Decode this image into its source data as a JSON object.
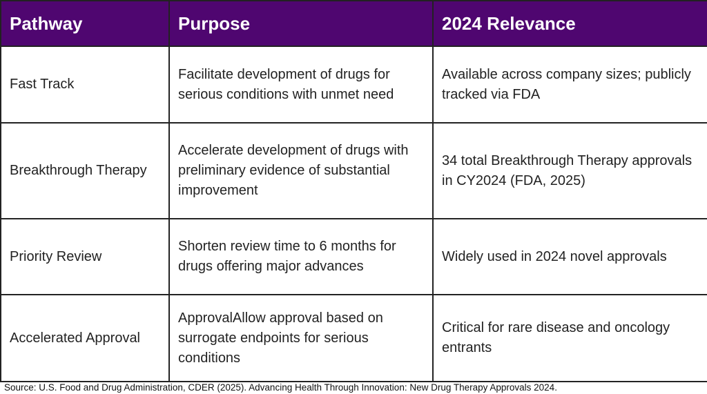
{
  "table": {
    "headers": [
      "Pathway",
      "Purpose",
      "2024 Relevance"
    ],
    "rows": [
      {
        "pathway": "Fast Track",
        "purpose": "Facilitate development of drugs for serious conditions with unmet need",
        "relevance": "Available across company sizes; publicly tracked via FDA"
      },
      {
        "pathway": "Breakthrough Therapy",
        "purpose": "Accelerate development of drugs with preliminary evidence of substantial improvement",
        "relevance": "34 total Breakthrough Therapy approvals in CY2024 (FDA, 2025)"
      },
      {
        "pathway": "Priority Review",
        "purpose": "Shorten review time to 6 months for drugs offering major advances",
        "relevance": "Widely used in 2024 novel approvals"
      },
      {
        "pathway": "Accelerated Approval",
        "purpose": "ApprovalAllow approval based on surrogate endpoints for serious conditions",
        "relevance": "Critical for rare disease and oncology entrants"
      }
    ]
  },
  "source": "Source: U.S. Food and Drug Administration, CDER (2025). Advancing Health Through Innovation: New Drug Therapy Approvals 2024.",
  "colors": {
    "header_bg": "#4f0670",
    "header_text": "#ffffff",
    "border": "#222222"
  }
}
